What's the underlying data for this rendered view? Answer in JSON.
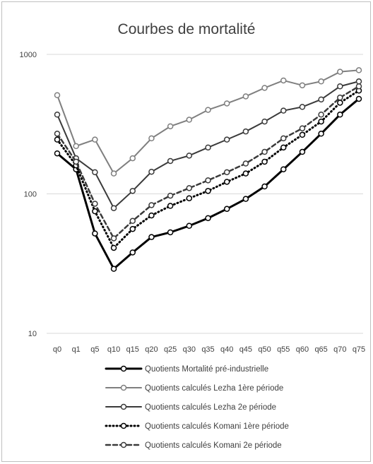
{
  "chart_data": {
    "type": "line",
    "title": "Courbes de mortalité",
    "xlabel": "",
    "ylabel": "",
    "y_scale": "log",
    "ylim": [
      10,
      1000
    ],
    "y_ticks": [
      "10",
      "100",
      "1000"
    ],
    "grid": "horizontal",
    "legend_position": "bottom",
    "categories": [
      "q0",
      "q1",
      "q5",
      "q10",
      "q15",
      "q20",
      "q25",
      "q30",
      "q35",
      "q40",
      "q45",
      "q50",
      "q55",
      "q60",
      "q65",
      "q70",
      "q75"
    ],
    "series": [
      {
        "name": "Quotients Mortalité pré-industrielle",
        "color": "#000000",
        "dash": "solid",
        "width": 3,
        "values": [
          195,
          150,
          52,
          29,
          38,
          49,
          53,
          59,
          67,
          78,
          92,
          113,
          150,
          200,
          270,
          370,
          480
        ]
      },
      {
        "name": "Quotients calculés Lezha 1ère période",
        "color": "#7f7f7f",
        "dash": "solid",
        "width": 2,
        "values": [
          510,
          220,
          245,
          140,
          180,
          250,
          305,
          340,
          400,
          445,
          500,
          575,
          650,
          600,
          640,
          750,
          770
        ]
      },
      {
        "name": "Quotients calculés Lezha 2e période",
        "color": "#3a3a3a",
        "dash": "solid",
        "width": 2,
        "values": [
          370,
          180,
          143,
          79,
          105,
          144,
          172,
          188,
          215,
          245,
          280,
          330,
          395,
          420,
          475,
          590,
          640
        ]
      },
      {
        "name": "Quotients calculés Komani 1ère période",
        "color": "#000000",
        "dash": "dotted",
        "width": 3,
        "values": [
          245,
          160,
          75,
          41,
          56,
          70,
          82,
          93,
          105,
          122,
          140,
          170,
          215,
          265,
          330,
          450,
          550
        ]
      },
      {
        "name": "Quotients calculés Komani 2e période",
        "color": "#3a3a3a",
        "dash": "dashed",
        "width": 2.5,
        "values": [
          270,
          170,
          85,
          48,
          64,
          83,
          97,
          110,
          125,
          143,
          165,
          200,
          250,
          295,
          370,
          490,
          590
        ]
      }
    ]
  }
}
